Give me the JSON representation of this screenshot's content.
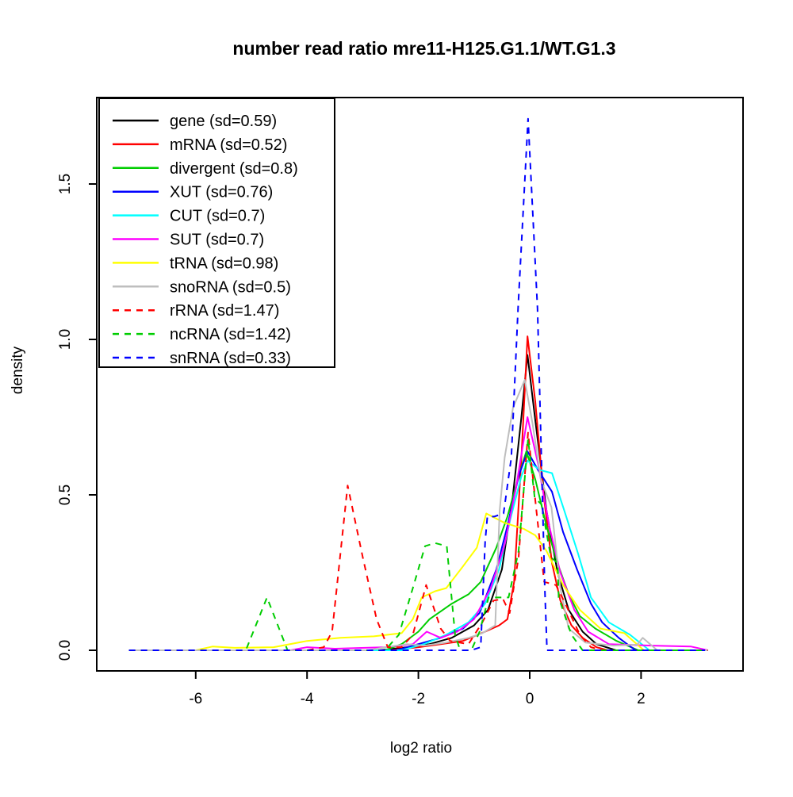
{
  "title": "number read ratio mre11-H125.G1.1/WT.G1.3",
  "axes": {
    "x": {
      "label": "log2 ratio",
      "ticks": [
        -6,
        -4,
        -2,
        0,
        2
      ],
      "tick_labels": [
        "-6",
        "-4",
        "-2",
        "0",
        "2"
      ]
    },
    "y": {
      "label": "density",
      "ticks": [
        0.0,
        0.5,
        1.0,
        1.5
      ],
      "tick_labels": [
        "0.0",
        "0.5",
        "1.0",
        "1.5"
      ]
    }
  },
  "legend": {
    "items": [
      {
        "label": "gene (sd=0.59)",
        "color": "#000000",
        "linestyle": "solid"
      },
      {
        "label": "mRNA (sd=0.52)",
        "color": "#FF0000",
        "linestyle": "solid"
      },
      {
        "label": "divergent (sd=0.8)",
        "color": "#00CD00",
        "linestyle": "solid"
      },
      {
        "label": "XUT (sd=0.76)",
        "color": "#0000FF",
        "linestyle": "solid"
      },
      {
        "label": "CUT (sd=0.7)",
        "color": "#00FFFF",
        "linestyle": "solid"
      },
      {
        "label": "SUT (sd=0.7)",
        "color": "#FF00FF",
        "linestyle": "solid"
      },
      {
        "label": "tRNA (sd=0.98)",
        "color": "#FFFF00",
        "linestyle": "solid"
      },
      {
        "label": "snoRNA (sd=0.5)",
        "color": "#BEBEBE",
        "linestyle": "solid"
      },
      {
        "label": "rRNA (sd=1.47)",
        "color": "#FF0000",
        "linestyle": "dashed"
      },
      {
        "label": "ncRNA (sd=1.42)",
        "color": "#00CD00",
        "linestyle": "dashed"
      },
      {
        "label": "snRNA (sd=0.33)",
        "color": "#0000FF",
        "linestyle": "dashed"
      }
    ]
  },
  "chart_data": {
    "type": "line",
    "title": "number read ratio mre11-H125.G1.1/WT.G1.3",
    "xlabel": "log2 ratio",
    "ylabel": "density",
    "xlim": [
      -7.8,
      3.8
    ],
    "ylim": [
      0,
      1.78
    ],
    "grid": false,
    "legend_position": "top-left",
    "series": [
      {
        "name": "gene",
        "sd": 0.59,
        "color": "#000000",
        "linestyle": "solid",
        "points": [
          [
            -7.2,
            0
          ],
          [
            -2.7,
            0
          ],
          [
            -2.2,
            0.01
          ],
          [
            -1.8,
            0.02
          ],
          [
            -1.4,
            0.04
          ],
          [
            -1.0,
            0.08
          ],
          [
            -0.75,
            0.13
          ],
          [
            -0.5,
            0.26
          ],
          [
            -0.3,
            0.5
          ],
          [
            -0.15,
            0.75
          ],
          [
            -0.04,
            0.95
          ],
          [
            0.1,
            0.74
          ],
          [
            0.3,
            0.45
          ],
          [
            0.5,
            0.25
          ],
          [
            0.7,
            0.13
          ],
          [
            0.95,
            0.06
          ],
          [
            1.2,
            0.02
          ],
          [
            1.55,
            0
          ],
          [
            3.2,
            0
          ]
        ]
      },
      {
        "name": "mRNA",
        "sd": 0.52,
        "color": "#FF0000",
        "linestyle": "solid",
        "points": [
          [
            -7.2,
            0
          ],
          [
            -2.5,
            0
          ],
          [
            -2.0,
            0.01
          ],
          [
            -1.6,
            0.02
          ],
          [
            -1.2,
            0.03
          ],
          [
            -0.8,
            0.06
          ],
          [
            -0.55,
            0.08
          ],
          [
            -0.4,
            0.1
          ],
          [
            -0.28,
            0.22
          ],
          [
            -0.15,
            0.62
          ],
          [
            -0.04,
            1.01
          ],
          [
            0.1,
            0.8
          ],
          [
            0.25,
            0.5
          ],
          [
            0.4,
            0.28
          ],
          [
            0.55,
            0.16
          ],
          [
            0.75,
            0.08
          ],
          [
            0.95,
            0.04
          ],
          [
            1.2,
            0.01
          ],
          [
            1.4,
            0
          ],
          [
            3.2,
            0
          ]
        ]
      },
      {
        "name": "divergent",
        "sd": 0.8,
        "color": "#00CD00",
        "linestyle": "solid",
        "points": [
          [
            -7.2,
            0
          ],
          [
            -2.6,
            0
          ],
          [
            -2.3,
            0.02
          ],
          [
            -2.0,
            0.06
          ],
          [
            -1.8,
            0.1
          ],
          [
            -1.4,
            0.15
          ],
          [
            -1.1,
            0.18
          ],
          [
            -0.88,
            0.22
          ],
          [
            -0.6,
            0.33
          ],
          [
            -0.4,
            0.43
          ],
          [
            -0.2,
            0.56
          ],
          [
            -0.06,
            0.64
          ],
          [
            0.1,
            0.55
          ],
          [
            0.3,
            0.4
          ],
          [
            0.5,
            0.28
          ],
          [
            0.7,
            0.18
          ],
          [
            0.9,
            0.11
          ],
          [
            1.18,
            0.07
          ],
          [
            1.56,
            0.03
          ],
          [
            1.95,
            0
          ],
          [
            3.2,
            0
          ]
        ]
      },
      {
        "name": "XUT",
        "sd": 0.76,
        "color": "#0000FF",
        "linestyle": "solid",
        "points": [
          [
            -7.2,
            0
          ],
          [
            -2.4,
            0
          ],
          [
            -2.0,
            0.02
          ],
          [
            -1.6,
            0.04
          ],
          [
            -1.2,
            0.07
          ],
          [
            -0.9,
            0.12
          ],
          [
            -0.6,
            0.26
          ],
          [
            -0.4,
            0.4
          ],
          [
            -0.2,
            0.56
          ],
          [
            -0.04,
            0.64
          ],
          [
            0.15,
            0.58
          ],
          [
            0.4,
            0.51
          ],
          [
            0.6,
            0.38
          ],
          [
            0.85,
            0.26
          ],
          [
            1.1,
            0.15
          ],
          [
            1.3,
            0.09
          ],
          [
            1.6,
            0.04
          ],
          [
            1.9,
            0
          ],
          [
            3.2,
            0
          ]
        ]
      },
      {
        "name": "CUT",
        "sd": 0.7,
        "color": "#00FFFF",
        "linestyle": "solid",
        "points": [
          [
            -7.2,
            0
          ],
          [
            -2.3,
            0
          ],
          [
            -1.9,
            0.02
          ],
          [
            -1.5,
            0.05
          ],
          [
            -1.1,
            0.09
          ],
          [
            -0.8,
            0.15
          ],
          [
            -0.55,
            0.26
          ],
          [
            -0.35,
            0.42
          ],
          [
            -0.15,
            0.56
          ],
          [
            -0.04,
            0.61
          ],
          [
            0.18,
            0.58
          ],
          [
            0.4,
            0.57
          ],
          [
            0.62,
            0.45
          ],
          [
            0.87,
            0.31
          ],
          [
            1.1,
            0.17
          ],
          [
            1.42,
            0.09
          ],
          [
            1.8,
            0.05
          ],
          [
            2.15,
            0
          ],
          [
            3.2,
            0
          ]
        ]
      },
      {
        "name": "SUT",
        "sd": 0.7,
        "color": "#FF00FF",
        "linestyle": "solid",
        "points": [
          [
            -7.2,
            0
          ],
          [
            -4.3,
            0
          ],
          [
            -4.0,
            0.01
          ],
          [
            -3.5,
            0.005
          ],
          [
            -2.6,
            0.01
          ],
          [
            -2.1,
            0.02
          ],
          [
            -1.85,
            0.06
          ],
          [
            -1.6,
            0.04
          ],
          [
            -1.3,
            0.06
          ],
          [
            -1.0,
            0.1
          ],
          [
            -0.7,
            0.2
          ],
          [
            -0.45,
            0.34
          ],
          [
            -0.25,
            0.52
          ],
          [
            -0.04,
            0.75
          ],
          [
            0.15,
            0.6
          ],
          [
            0.35,
            0.4
          ],
          [
            0.55,
            0.25
          ],
          [
            0.8,
            0.13
          ],
          [
            1.05,
            0.06
          ],
          [
            1.42,
            0.02
          ],
          [
            2.2,
            0.015
          ],
          [
            2.9,
            0.012
          ],
          [
            3.2,
            0
          ]
        ]
      },
      {
        "name": "tRNA",
        "sd": 0.98,
        "color": "#FFFF00",
        "linestyle": "solid",
        "points": [
          [
            -7.2,
            0
          ],
          [
            -6.0,
            0
          ],
          [
            -5.7,
            0.012
          ],
          [
            -5.3,
            0.008
          ],
          [
            -4.6,
            0.01
          ],
          [
            -4.0,
            0.03
          ],
          [
            -3.4,
            0.04
          ],
          [
            -2.8,
            0.045
          ],
          [
            -2.3,
            0.055
          ],
          [
            -2.1,
            0.1
          ],
          [
            -1.94,
            0.17
          ],
          [
            -1.7,
            0.19
          ],
          [
            -1.5,
            0.2
          ],
          [
            -1.2,
            0.27
          ],
          [
            -0.95,
            0.33
          ],
          [
            -0.78,
            0.44
          ],
          [
            -0.45,
            0.41
          ],
          [
            -0.1,
            0.39
          ],
          [
            0.1,
            0.37
          ],
          [
            0.3,
            0.32
          ],
          [
            0.6,
            0.21
          ],
          [
            0.9,
            0.13
          ],
          [
            1.27,
            0.07
          ],
          [
            1.7,
            0.055
          ],
          [
            2.05,
            0
          ],
          [
            3.2,
            0
          ]
        ]
      },
      {
        "name": "snoRNA",
        "sd": 0.5,
        "color": "#BEBEBE",
        "linestyle": "solid",
        "points": [
          [
            -7.2,
            0
          ],
          [
            -2.9,
            0
          ],
          [
            -2.6,
            0.01
          ],
          [
            -2.2,
            0.02
          ],
          [
            -1.9,
            0.015
          ],
          [
            -1.5,
            0.025
          ],
          [
            -1.1,
            0.04
          ],
          [
            -0.85,
            0.055
          ],
          [
            -0.62,
            0.08
          ],
          [
            -0.54,
            0.45
          ],
          [
            -0.45,
            0.62
          ],
          [
            -0.3,
            0.78
          ],
          [
            -0.09,
            0.87
          ],
          [
            0.05,
            0.73
          ],
          [
            0.2,
            0.55
          ],
          [
            0.39,
            0.46
          ],
          [
            0.55,
            0.2
          ],
          [
            0.7,
            0.07
          ],
          [
            1.0,
            0.025
          ],
          [
            1.5,
            0.015
          ],
          [
            1.93,
            0.018
          ],
          [
            2.03,
            0.04
          ],
          [
            2.29,
            0
          ],
          [
            3.2,
            0
          ]
        ]
      },
      {
        "name": "rRNA",
        "sd": 1.47,
        "color": "#FF0000",
        "linestyle": "dashed",
        "points": [
          [
            -7.2,
            0
          ],
          [
            -4.0,
            0
          ],
          [
            -3.7,
            0.01
          ],
          [
            -3.55,
            0.06
          ],
          [
            -3.27,
            0.53
          ],
          [
            -3.0,
            0.3
          ],
          [
            -2.75,
            0.1
          ],
          [
            -2.55,
            0.01
          ],
          [
            -2.3,
            0.01
          ],
          [
            -2.1,
            0.05
          ],
          [
            -1.86,
            0.21
          ],
          [
            -1.6,
            0.07
          ],
          [
            -1.43,
            0.03
          ],
          [
            -1.1,
            0.02
          ],
          [
            -0.85,
            0.09
          ],
          [
            -0.65,
            0.16
          ],
          [
            -0.48,
            0.165
          ],
          [
            -0.36,
            0.12
          ],
          [
            -0.2,
            0.3
          ],
          [
            -0.03,
            0.7
          ],
          [
            0.12,
            0.45
          ],
          [
            0.26,
            0.22
          ],
          [
            0.47,
            0.21
          ],
          [
            0.64,
            0.15
          ],
          [
            0.9,
            0.05
          ],
          [
            1.1,
            0.01
          ],
          [
            1.3,
            0
          ],
          [
            3.2,
            0
          ]
        ]
      },
      {
        "name": "ncRNA",
        "sd": 1.42,
        "color": "#00CD00",
        "linestyle": "dashed",
        "points": [
          [
            -7.2,
            0
          ],
          [
            -5.1,
            0
          ],
          [
            -4.72,
            0.17
          ],
          [
            -4.35,
            0
          ],
          [
            -2.6,
            0
          ],
          [
            -2.35,
            0.05
          ],
          [
            -2.1,
            0.2
          ],
          [
            -1.88,
            0.335
          ],
          [
            -1.7,
            0.345
          ],
          [
            -1.49,
            0.335
          ],
          [
            -1.34,
            0.05
          ],
          [
            -1.25,
            0
          ],
          [
            -1.05,
            0
          ],
          [
            -0.9,
            0.06
          ],
          [
            -0.74,
            0.17
          ],
          [
            -0.38,
            0.17
          ],
          [
            -0.2,
            0.32
          ],
          [
            -0.03,
            0.68
          ],
          [
            0.09,
            0.49
          ],
          [
            0.21,
            0.47
          ],
          [
            0.38,
            0.3
          ],
          [
            0.5,
            0.28
          ],
          [
            0.52,
            0.17
          ],
          [
            0.75,
            0.05
          ],
          [
            0.95,
            0
          ],
          [
            3.2,
            0
          ]
        ]
      },
      {
        "name": "snRNA",
        "sd": 0.33,
        "color": "#0000FF",
        "linestyle": "dashed",
        "points": [
          [
            -7.2,
            0
          ],
          [
            -1.05,
            0
          ],
          [
            -0.88,
            0.01
          ],
          [
            -0.8,
            0.35
          ],
          [
            -0.76,
            0.43
          ],
          [
            -0.64,
            0.43
          ],
          [
            -0.47,
            0.44
          ],
          [
            -0.33,
            0.62
          ],
          [
            -0.21,
            1.1
          ],
          [
            -0.03,
            1.71
          ],
          [
            0.14,
            1.1
          ],
          [
            0.27,
            0.2
          ],
          [
            0.31,
            0
          ],
          [
            3.15,
            0
          ]
        ]
      }
    ]
  }
}
